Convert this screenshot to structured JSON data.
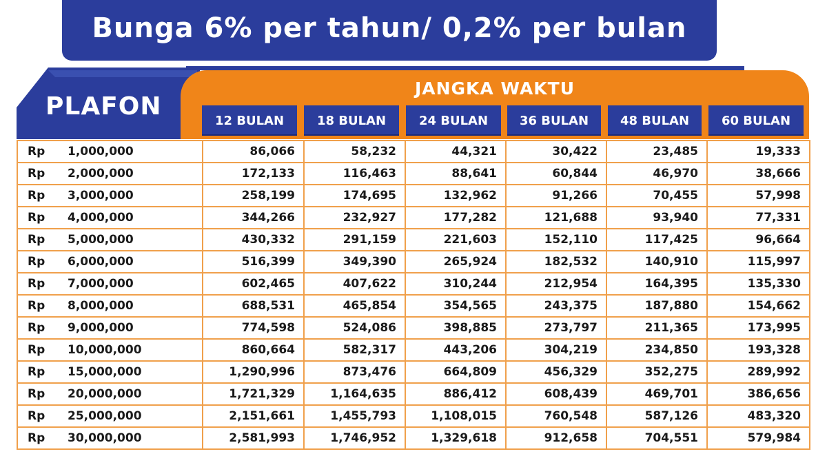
{
  "banner": {
    "title": "Bunga 6% per tahun/ 0,2% per bulan"
  },
  "header": {
    "plafon_label": "PLAFON",
    "jangka_label": "JANGKA WAKTU",
    "columns": [
      "12 BULAN",
      "18 BULAN",
      "24 BULAN",
      "36 BULAN",
      "48 BULAN",
      "60 BULAN"
    ]
  },
  "colors": {
    "blue": "#2b3d9c",
    "orange": "#f08519",
    "grid": "#f0a04b"
  },
  "rows": [
    {
      "currency": "Rp",
      "plafon": "1,000,000",
      "values": [
        "86,066",
        "58,232",
        "44,321",
        "30,422",
        "23,485",
        "19,333"
      ]
    },
    {
      "currency": "Rp",
      "plafon": "2,000,000",
      "values": [
        "172,133",
        "116,463",
        "88,641",
        "60,844",
        "46,970",
        "38,666"
      ]
    },
    {
      "currency": "Rp",
      "plafon": "3,000,000",
      "values": [
        "258,199",
        "174,695",
        "132,962",
        "91,266",
        "70,455",
        "57,998"
      ]
    },
    {
      "currency": "Rp",
      "plafon": "4,000,000",
      "values": [
        "344,266",
        "232,927",
        "177,282",
        "121,688",
        "93,940",
        "77,331"
      ]
    },
    {
      "currency": "Rp",
      "plafon": "5,000,000",
      "values": [
        "430,332",
        "291,159",
        "221,603",
        "152,110",
        "117,425",
        "96,664"
      ]
    },
    {
      "currency": "Rp",
      "plafon": "6,000,000",
      "values": [
        "516,399",
        "349,390",
        "265,924",
        "182,532",
        "140,910",
        "115,997"
      ]
    },
    {
      "currency": "Rp",
      "plafon": "7,000,000",
      "values": [
        "602,465",
        "407,622",
        "310,244",
        "212,954",
        "164,395",
        "135,330"
      ]
    },
    {
      "currency": "Rp",
      "plafon": "8,000,000",
      "values": [
        "688,531",
        "465,854",
        "354,565",
        "243,375",
        "187,880",
        "154,662"
      ]
    },
    {
      "currency": "Rp",
      "plafon": "9,000,000",
      "values": [
        "774,598",
        "524,086",
        "398,885",
        "273,797",
        "211,365",
        "173,995"
      ]
    },
    {
      "currency": "Rp",
      "plafon": "10,000,000",
      "values": [
        "860,664",
        "582,317",
        "443,206",
        "304,219",
        "234,850",
        "193,328"
      ]
    },
    {
      "currency": "Rp",
      "plafon": "15,000,000",
      "values": [
        "1,290,996",
        "873,476",
        "664,809",
        "456,329",
        "352,275",
        "289,992"
      ]
    },
    {
      "currency": "Rp",
      "plafon": "20,000,000",
      "values": [
        "1,721,329",
        "1,164,635",
        "886,412",
        "608,439",
        "469,701",
        "386,656"
      ]
    },
    {
      "currency": "Rp",
      "plafon": "25,000,000",
      "values": [
        "2,151,661",
        "1,455,793",
        "1,108,015",
        "760,548",
        "587,126",
        "483,320"
      ]
    },
    {
      "currency": "Rp",
      "plafon": "30,000,000",
      "values": [
        "2,581,993",
        "1,746,952",
        "1,329,618",
        "912,658",
        "704,551",
        "579,984"
      ]
    }
  ]
}
